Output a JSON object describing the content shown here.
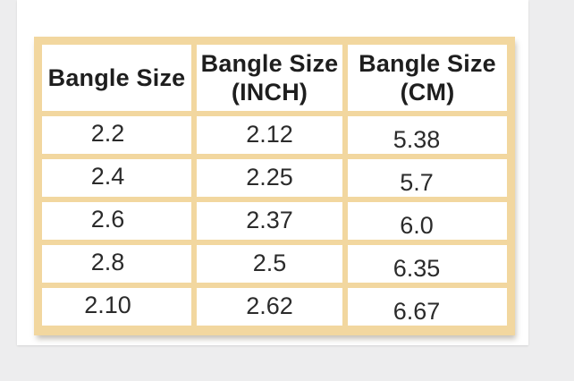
{
  "page": {
    "background_color": "#ededee",
    "photo_background_color": "#ffffff"
  },
  "chart_data": {
    "type": "table",
    "columns": [
      "Bangle Size",
      "Bangle Size (INCH)",
      "Bangle Size (CM)"
    ],
    "header_lines": [
      [
        "Bangle Size",
        ""
      ],
      [
        "Bangle Size",
        "(INCH)"
      ],
      [
        "Bangle Size",
        "(CM)"
      ]
    ],
    "rows": [
      [
        "2.2",
        "2.12",
        "5.38"
      ],
      [
        "2.4",
        "2.25",
        "5.7"
      ],
      [
        "2.6",
        "2.37",
        "6.0"
      ],
      [
        "2.8",
        "2.5",
        "6.35"
      ],
      [
        "2.10",
        "2.62",
        "6.67"
      ]
    ],
    "layout_hints": {
      "grid": "on",
      "header_position": "top"
    },
    "colors": {
      "table_border": "#f2d79f",
      "cell_background": "#ffffff",
      "page_background": "#ededee",
      "text": "#2b2b2b",
      "header_text": "#1e1e1e"
    }
  }
}
